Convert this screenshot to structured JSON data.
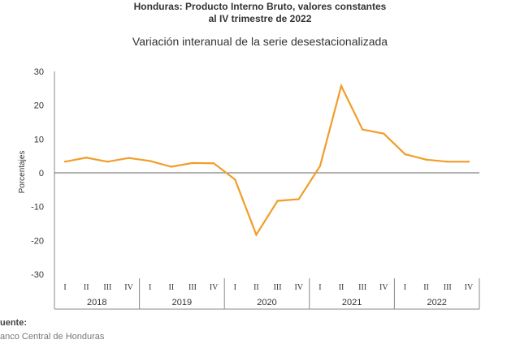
{
  "header": {
    "title_line1": "Honduras: Producto Interno Bruto, valores constantes",
    "title_line2": "al IV trimestre de 2022",
    "subtitle": "Variación interanual de la serie desestacionalizada"
  },
  "footer": {
    "source_label": "uente:",
    "source_text": "anco Central de Honduras"
  },
  "chart_data": {
    "type": "line",
    "title": "Variación interanual de la serie desestacionalizada",
    "ylabel": "Porcentajes",
    "xlabel": "",
    "ylim": [
      -30,
      30
    ],
    "yticks": [
      30,
      20,
      10,
      0,
      -10,
      -20,
      -30
    ],
    "grid": false,
    "line_color": "#f39c2a",
    "quarters": [
      "I",
      "II",
      "III",
      "IV"
    ],
    "years": [
      "2018",
      "2019",
      "2020",
      "2021",
      "2022"
    ],
    "categories": [
      "2018-I",
      "2018-II",
      "2018-III",
      "2018-IV",
      "2019-I",
      "2019-II",
      "2019-III",
      "2019-IV",
      "2020-I",
      "2020-II",
      "2020-III",
      "2020-IV",
      "2021-I",
      "2021-II",
      "2021-III",
      "2021-IV",
      "2022-I",
      "2022-II",
      "2022-III",
      "2022-IV"
    ],
    "series": [
      {
        "values": [
          3.3,
          4.5,
          3.3,
          4.4,
          3.5,
          1.8,
          2.9,
          2.8,
          -2.0,
          -18.3,
          -8.3,
          -7.8,
          2.0,
          25.7,
          12.8,
          11.6,
          5.5,
          3.9,
          3.3,
          3.3
        ]
      }
    ]
  }
}
